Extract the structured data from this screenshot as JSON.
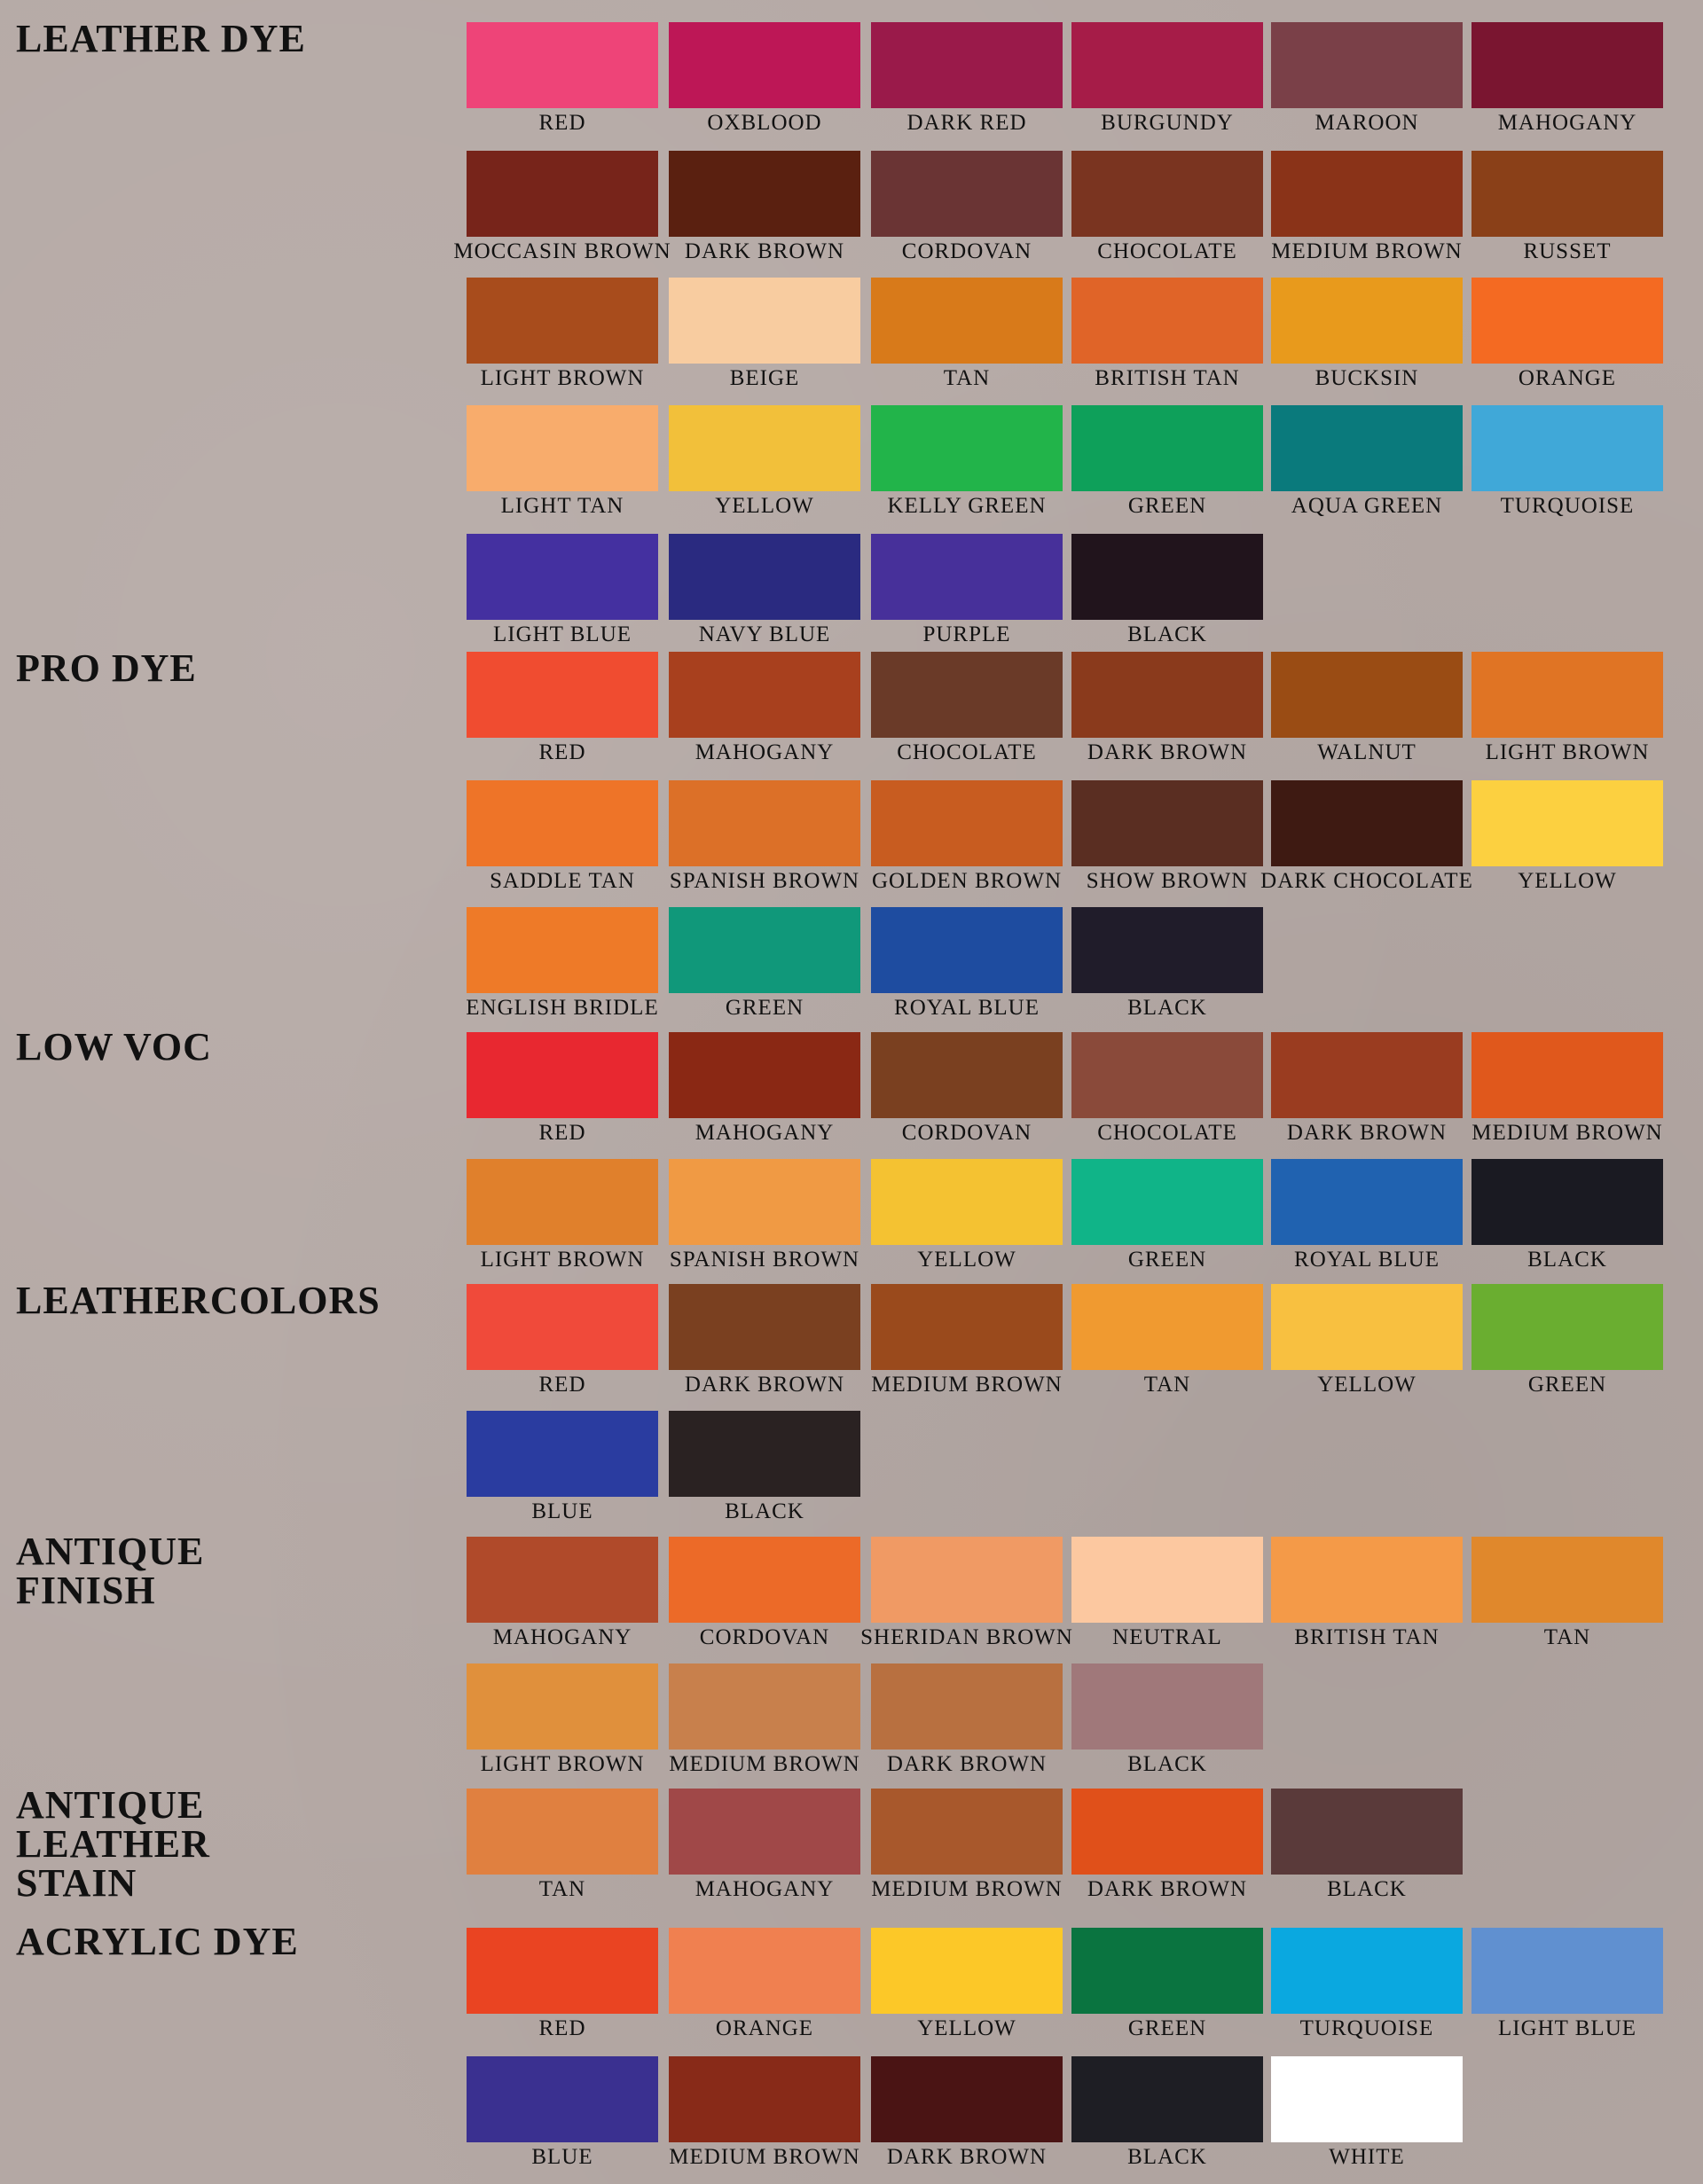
{
  "sections": [
    {
      "title": "LEATHER DYE",
      "rows": [
        [
          [
            "RED",
            "#ee4478"
          ],
          [
            "OXBLOOD",
            "#bd1756"
          ],
          [
            "DARK RED",
            "#9a1a4a"
          ],
          [
            "BURGUNDY",
            "#a61c48"
          ],
          [
            "MAROON",
            "#7a4048"
          ],
          [
            "MAHOGANY",
            "#7a1530"
          ]
        ],
        [
          [
            "MOCCASIN BROWN",
            "#77241a"
          ],
          [
            "DARK BROWN",
            "#5a2010"
          ],
          [
            "CORDOVAN",
            "#6a3434"
          ],
          [
            "CHOCOLATE",
            "#7a3420"
          ],
          [
            "MEDIUM BROWN",
            "#8a3318"
          ],
          [
            "RUSSET",
            "#8a4018"
          ]
        ],
        [
          [
            "LIGHT BROWN",
            "#a84c1c"
          ],
          [
            "BEIGE",
            "#f8cca0"
          ],
          [
            "TAN",
            "#d87a1a"
          ],
          [
            "BRITISH TAN",
            "#e06428"
          ],
          [
            "BUCKSIN",
            "#e89a1c"
          ],
          [
            "ORANGE",
            "#f46a22"
          ]
        ],
        [
          [
            "LIGHT TAN",
            "#f8ac6c"
          ],
          [
            "YELLOW",
            "#f2c03a"
          ],
          [
            "KELLY GREEN",
            "#22b44a"
          ],
          [
            "GREEN",
            "#0ea05a"
          ],
          [
            "AQUA GREEN",
            "#0a7a7c"
          ],
          [
            "TURQUOISE",
            "#40a8d8"
          ]
        ],
        [
          [
            "LIGHT BLUE",
            "#4430a0"
          ],
          [
            "NAVY BLUE",
            "#2a2a80"
          ],
          [
            "PURPLE",
            "#47309a"
          ],
          [
            "BLACK",
            "#21141c"
          ]
        ]
      ]
    },
    {
      "title": "PRO DYE",
      "rows": [
        [
          [
            "RED",
            "#f04c30"
          ],
          [
            "MAHOGANY",
            "#a8401e"
          ],
          [
            "CHOCOLATE",
            "#6a3a28"
          ],
          [
            "DARK BROWN",
            "#8a3a1c"
          ],
          [
            "WALNUT",
            "#9a4c14"
          ],
          [
            "LIGHT BROWN",
            "#e07424"
          ]
        ],
        [
          [
            "SADDLE TAN",
            "#ee7428"
          ],
          [
            "SPANISH BROWN",
            "#dc7028"
          ],
          [
            "GOLDEN BROWN",
            "#c85c20"
          ],
          [
            "SHOW BROWN",
            "#5a2e22"
          ],
          [
            "DARK CHOCOLATE",
            "#3e1a12"
          ],
          [
            "YELLOW",
            "#fcd040"
          ]
        ],
        [
          [
            "ENGLISH BRIDLE",
            "#ee7a28"
          ],
          [
            "GREEN",
            "#10987a"
          ],
          [
            "ROYAL BLUE",
            "#1e4ca0"
          ],
          [
            "BLACK",
            "#201c2a"
          ]
        ]
      ]
    },
    {
      "title": "LOW VOC",
      "rows": [
        [
          [
            "RED",
            "#e82830"
          ],
          [
            "MAHOGANY",
            "#8a2814"
          ],
          [
            "CORDOVAN",
            "#7a4020"
          ],
          [
            "CHOCOLATE",
            "#8a4a3a"
          ],
          [
            "DARK BROWN",
            "#9a3c20"
          ],
          [
            "MEDIUM BROWN",
            "#e0581c"
          ]
        ],
        [
          [
            "LIGHT BROWN",
            "#e0802c"
          ],
          [
            "SPANISH BROWN",
            "#f09a44"
          ],
          [
            "YELLOW",
            "#f4c232"
          ],
          [
            "GREEN",
            "#10b488"
          ],
          [
            "ROYAL BLUE",
            "#2062b0"
          ],
          [
            "BLACK",
            "#1a1a22"
          ]
        ]
      ]
    },
    {
      "title": "LEATHERCOLORS",
      "rows": [
        [
          [
            "RED",
            "#f04a3a"
          ],
          [
            "DARK BROWN",
            "#7a4020"
          ],
          [
            "MEDIUM BROWN",
            "#9a4a1c"
          ],
          [
            "TAN",
            "#f09a30"
          ],
          [
            "YELLOW",
            "#f8c040"
          ],
          [
            "GREEN",
            "#6aae30"
          ]
        ],
        [
          [
            "BLUE",
            "#2a3ca0"
          ],
          [
            "BLACK",
            "#2a2222"
          ]
        ]
      ]
    },
    {
      "title": "ANTIQUE\nFINISH",
      "rows": [
        [
          [
            "MAHOGANY",
            "#b04a2a"
          ],
          [
            "CORDOVAN",
            "#ec6a28"
          ],
          [
            "SHERIDAN BROWN",
            "#f09a64"
          ],
          [
            "NEUTRAL",
            "#fcc8a0"
          ],
          [
            "BRITISH TAN",
            "#f49a48"
          ],
          [
            "TAN",
            "#e0882c"
          ]
        ],
        [
          [
            "LIGHT BROWN",
            "#e0903c"
          ],
          [
            "MEDIUM BROWN",
            "#c8804c"
          ],
          [
            "DARK BROWN",
            "#b87040"
          ],
          [
            "BLACK",
            "#a0787a"
          ]
        ]
      ]
    },
    {
      "title": "ANTIQUE\nLEATHER\nSTAIN",
      "rows": [
        [
          [
            "TAN",
            "#e08040"
          ],
          [
            "MAHOGANY",
            "#a04848"
          ],
          [
            "MEDIUM BROWN",
            "#a8582c"
          ],
          [
            "DARK BROWN",
            "#e0501a"
          ],
          [
            "BLACK",
            "#5a3a3a"
          ]
        ]
      ]
    },
    {
      "title": "ACRYLIC DYE",
      "rows": [
        [
          [
            "RED",
            "#ea4422"
          ],
          [
            "ORANGE",
            "#f08050"
          ],
          [
            "YELLOW",
            "#fcc828"
          ],
          [
            "GREEN",
            "#0a7440"
          ],
          [
            "TURQUOISE",
            "#0aa8e0"
          ],
          [
            "LIGHT BLUE",
            "#6090d0"
          ]
        ],
        [
          [
            "BLUE",
            "#3a3090"
          ],
          [
            "MEDIUM BROWN",
            "#882a18"
          ],
          [
            "DARK BROWN",
            "#4a1414"
          ],
          [
            "BLACK",
            "#1e1e24"
          ],
          [
            "WHITE",
            "#ffffff"
          ]
        ]
      ]
    }
  ]
}
